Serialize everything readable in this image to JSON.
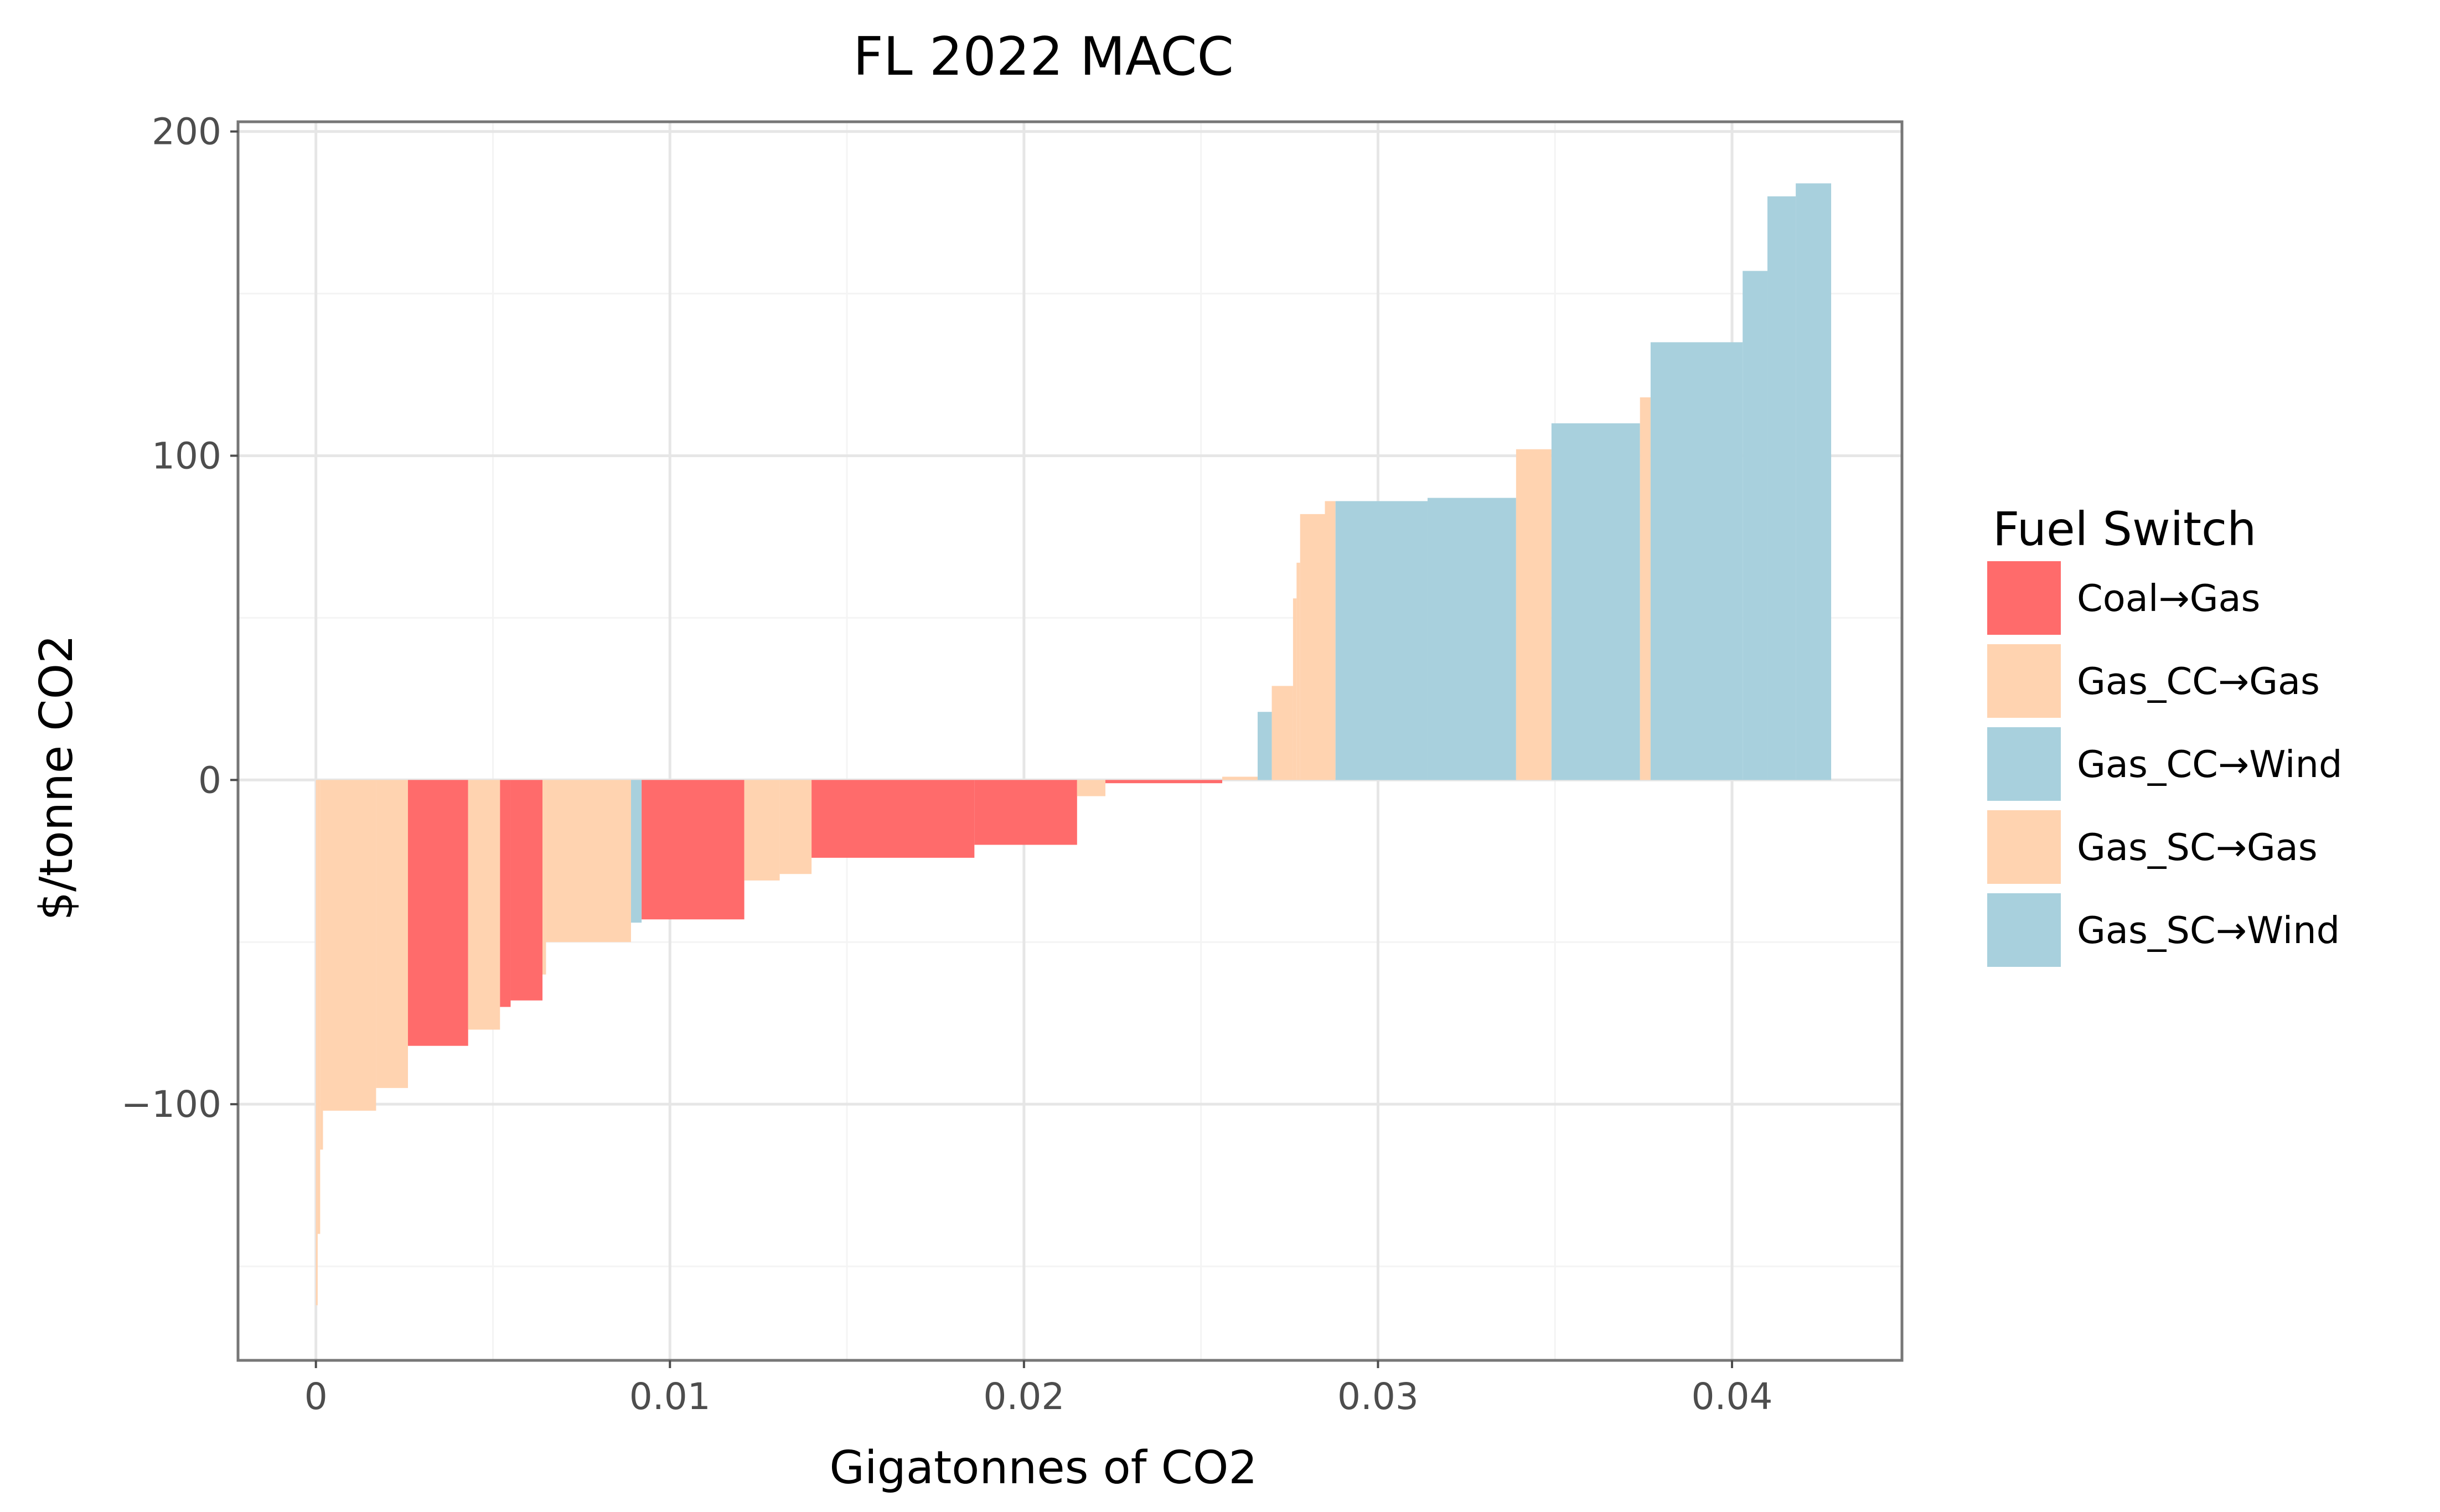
{
  "chart_data": {
    "type": "bar",
    "title": "FL 2022 MACC",
    "xlabel": "Gigatonnes of CO2",
    "ylabel": "$/tonne CO2",
    "xlim": [
      -0.0022,
      0.0448
    ],
    "ylim": [
      -179,
      203
    ],
    "x_ticks": [
      0,
      0.01,
      0.02,
      0.03,
      0.04
    ],
    "x_tick_labels": [
      "0",
      "0.01",
      "0.02",
      "0.03",
      "0.04"
    ],
    "y_ticks": [
      -100,
      0,
      100,
      200
    ],
    "y_tick_labels": [
      "−100",
      "0",
      "100",
      "200"
    ],
    "grid": true,
    "legend": {
      "title": "Fuel Switch",
      "position": "right",
      "entries": [
        {
          "name": "Coal→Gas",
          "color": "#ff6b6b"
        },
        {
          "name": "Gas_CC→Gas",
          "color": "#ffd3b0"
        },
        {
          "name": "Gas_CC→Wind",
          "color": "#a8d0dd"
        },
        {
          "name": "Gas_SC→Gas",
          "color": "#ffd3b0"
        },
        {
          "name": "Gas_SC→Wind",
          "color": "#a8d0dd"
        }
      ]
    },
    "bars": [
      {
        "x0": 0.0,
        "x1": 5e-05,
        "y": -162,
        "category": "Gas_SC→Gas"
      },
      {
        "x0": 5e-05,
        "x1": 0.00012,
        "y": -140,
        "category": "Gas_SC→Gas"
      },
      {
        "x0": 0.00012,
        "x1": 0.0002,
        "y": -114,
        "category": "Gas_SC→Gas"
      },
      {
        "x0": 0.0002,
        "x1": 0.0017,
        "y": -102,
        "category": "Gas_SC→Gas"
      },
      {
        "x0": 0.0017,
        "x1": 0.0026,
        "y": -95,
        "category": "Gas_SC→Gas"
      },
      {
        "x0": 0.0026,
        "x1": 0.0043,
        "y": -82,
        "category": "Coal→Gas"
      },
      {
        "x0": 0.0043,
        "x1": 0.0052,
        "y": -77,
        "category": "Gas_SC→Gas"
      },
      {
        "x0": 0.0052,
        "x1": 0.0055,
        "y": -70,
        "category": "Coal→Gas"
      },
      {
        "x0": 0.0055,
        "x1": 0.0064,
        "y": -68,
        "category": "Coal→Gas"
      },
      {
        "x0": 0.0064,
        "x1": 0.0065,
        "y": -60,
        "category": "Gas_SC→Gas"
      },
      {
        "x0": 0.0065,
        "x1": 0.0089,
        "y": -50,
        "category": "Gas_SC→Gas"
      },
      {
        "x0": 0.0089,
        "x1": 0.0092,
        "y": -44,
        "category": "Gas_SC→Wind"
      },
      {
        "x0": 0.0092,
        "x1": 0.0121,
        "y": -43,
        "category": "Coal→Gas"
      },
      {
        "x0": 0.0121,
        "x1": 0.0131,
        "y": -31,
        "category": "Gas_SC→Gas"
      },
      {
        "x0": 0.0131,
        "x1": 0.014,
        "y": -29,
        "category": "Gas_SC→Gas"
      },
      {
        "x0": 0.014,
        "x1": 0.0186,
        "y": -24,
        "category": "Coal→Gas"
      },
      {
        "x0": 0.0186,
        "x1": 0.0215,
        "y": -20,
        "category": "Coal→Gas"
      },
      {
        "x0": 0.0215,
        "x1": 0.0223,
        "y": -5,
        "category": "Gas_SC→Gas"
      },
      {
        "x0": 0.0223,
        "x1": 0.0256,
        "y": -1,
        "category": "Coal→Gas"
      },
      {
        "x0": 0.0256,
        "x1": 0.0266,
        "y": 1,
        "category": "Gas_SC→Gas"
      },
      {
        "x0": 0.0266,
        "x1": 0.027,
        "y": 21,
        "category": "Gas_CC→Wind"
      },
      {
        "x0": 0.027,
        "x1": 0.0276,
        "y": 29,
        "category": "Gas_CC→Gas"
      },
      {
        "x0": 0.0276,
        "x1": 0.0277,
        "y": 56,
        "category": "Gas_CC→Gas"
      },
      {
        "x0": 0.0277,
        "x1": 0.0278,
        "y": 67,
        "category": "Gas_CC→Gas"
      },
      {
        "x0": 0.0278,
        "x1": 0.0285,
        "y": 82,
        "category": "Gas_CC→Gas"
      },
      {
        "x0": 0.0285,
        "x1": 0.0288,
        "y": 86,
        "category": "Gas_CC→Gas"
      },
      {
        "x0": 0.0288,
        "x1": 0.0314,
        "y": 86,
        "category": "Gas_CC→Wind"
      },
      {
        "x0": 0.0314,
        "x1": 0.0339,
        "y": 87,
        "category": "Gas_CC→Wind"
      },
      {
        "x0": 0.0339,
        "x1": 0.0349,
        "y": 102,
        "category": "Gas_CC→Gas"
      },
      {
        "x0": 0.0349,
        "x1": 0.0374,
        "y": 110,
        "category": "Gas_CC→Wind"
      },
      {
        "x0": 0.0374,
        "x1": 0.0377,
        "y": 118,
        "category": "Gas_CC→Gas"
      },
      {
        "x0": 0.0377,
        "x1": 0.0403,
        "y": 135,
        "category": "Gas_CC→Wind"
      },
      {
        "x0": 0.0403,
        "x1": 0.041,
        "y": 157,
        "category": "Gas_CC→Wind"
      },
      {
        "x0": 0.041,
        "x1": 0.0418,
        "y": 180,
        "category": "Gas_CC→Wind"
      },
      {
        "x0": 0.0418,
        "x1": 0.0428,
        "y": 184,
        "category": "Gas_CC→Wind"
      }
    ]
  }
}
